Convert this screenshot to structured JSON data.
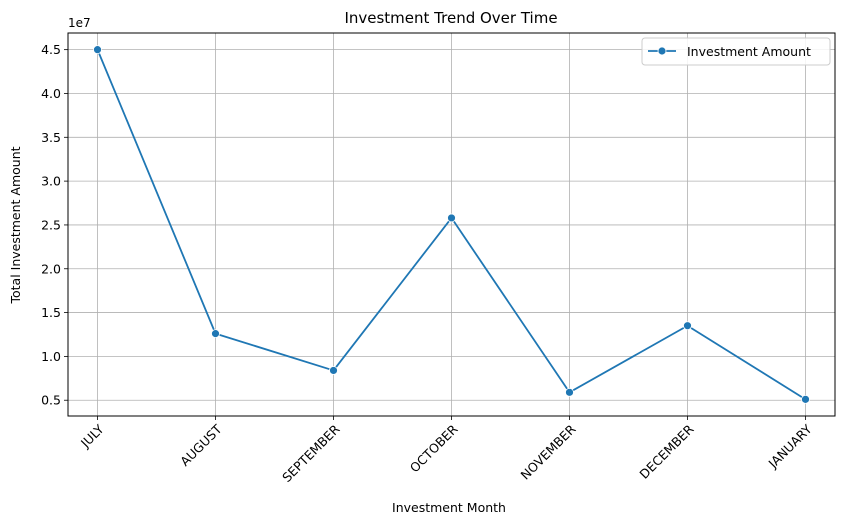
{
  "chart_data": {
    "type": "line",
    "title": "Investment Trend Over Time",
    "xlabel": "Investment Month",
    "ylabel": "Total Investment Amount",
    "y_scale_label": "1e7",
    "categories": [
      "JULY",
      "AUGUST",
      "SEPTEMBER",
      "OCTOBER",
      "NOVEMBER",
      "DECEMBER",
      "JANUARY"
    ],
    "series": [
      {
        "name": "Investment Amount",
        "values": [
          45000000,
          12600000,
          8400000,
          25800000,
          5900000,
          13500000,
          5100000
        ],
        "color": "#1f77b4"
      }
    ],
    "ylim": [
      3200000,
      46900000
    ],
    "yticks": [
      0.5,
      1.0,
      1.5,
      2.0,
      2.5,
      3.0,
      3.5,
      4.0,
      4.5
    ],
    "ytick_labels": [
      "0.5",
      "1.0",
      "1.5",
      "2.0",
      "2.5",
      "3.0",
      "3.5",
      "4.0",
      "4.5"
    ],
    "grid": true,
    "legend_position": "top-right",
    "x_tick_rotation": "45"
  }
}
